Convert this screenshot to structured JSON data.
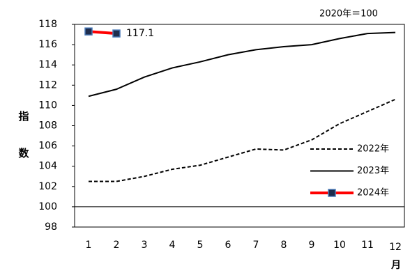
{
  "chart_data": {
    "type": "line",
    "annotation": "2020年＝100",
    "y_label": "指数",
    "x_label": "月",
    "categories": [
      "1",
      "2",
      "3",
      "4",
      "5",
      "6",
      "7",
      "8",
      "9",
      "10",
      "11",
      "12"
    ],
    "series": [
      {
        "name": "2022年",
        "color": "#000000",
        "style": "dashed",
        "values": [
          102.5,
          102.5,
          103.0,
          103.7,
          104.1,
          104.9,
          105.7,
          105.6,
          106.6,
          108.2,
          109.4,
          110.6
        ]
      },
      {
        "name": "2023年",
        "color": "#000000",
        "style": "solid",
        "values": [
          110.9,
          111.6,
          112.8,
          113.7,
          114.3,
          115.0,
          115.5,
          115.8,
          116.0,
          116.6,
          117.1,
          117.2
        ]
      },
      {
        "name": "2024年",
        "color": "#ff0000",
        "style": "solid",
        "marker_color": "#1f2d4d",
        "values": [
          117.3,
          117.1,
          null,
          null,
          null,
          null,
          null,
          null,
          null,
          null,
          null,
          null
        ],
        "value_labels": [
          null,
          "117.1",
          null,
          null,
          null,
          null,
          null,
          null,
          null,
          null,
          null,
          null
        ]
      }
    ],
    "ylim": [
      98,
      118
    ],
    "yticks": [
      98,
      100,
      102,
      104,
      106,
      108,
      110,
      112,
      114,
      116,
      118
    ],
    "reference_line": 100,
    "legend": "lower right"
  }
}
